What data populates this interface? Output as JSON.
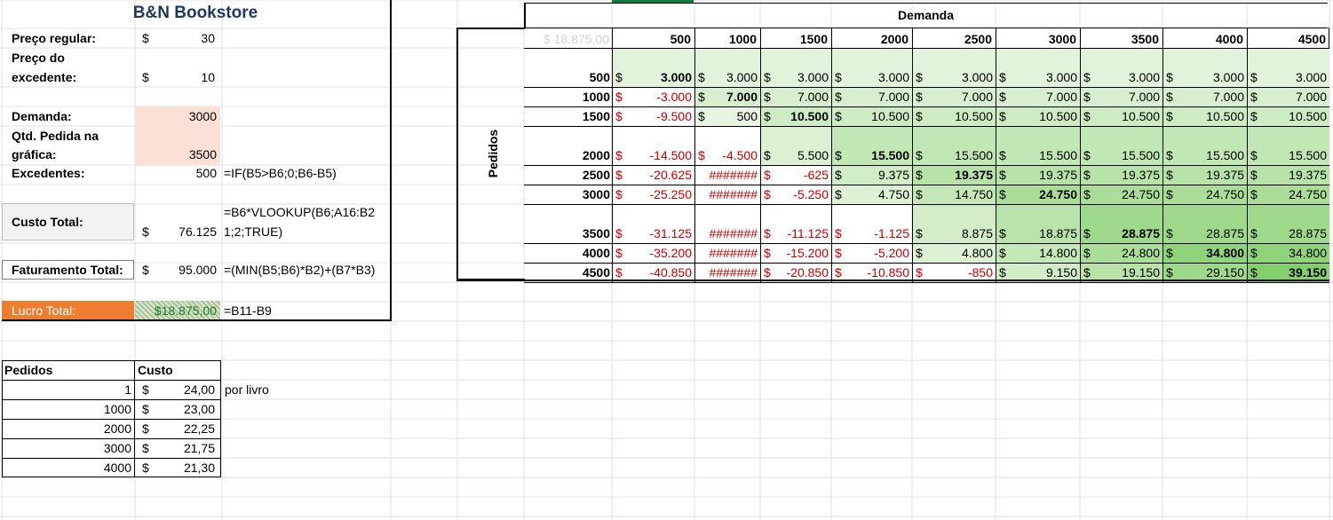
{
  "left_panel": {
    "title": "B&N Bookstore",
    "rows": [
      {
        "label": "Preço regular:",
        "currency": "$",
        "value": "30",
        "formula": ""
      },
      {
        "label_line1": "Preço do",
        "label_line2": "excedente:",
        "currency": "$",
        "value": "10",
        "formula": ""
      },
      {
        "label": "Demanda:",
        "currency": "",
        "value": "3000",
        "formula": ""
      },
      {
        "label_line1": "Qtd. Pedida na",
        "label_line2": "gráfica:",
        "currency": "",
        "value": "3500",
        "formula": ""
      },
      {
        "label": "Excedentes:",
        "currency": "",
        "value": "500",
        "formula": "=IF(B5>B6;0;B6-B5)"
      },
      {
        "label": "Custo Total:",
        "currency": "$",
        "value": "76.125",
        "formula_line1": "=B6*VLOOKUP(B6;A16:B2",
        "formula_line2": "1;2;TRUE)"
      },
      {
        "label": "Faturamento Total:",
        "currency": "$",
        "value": "95.000",
        "formula": "=(MIN(B5;B6)*B2)+(B7*B3)"
      },
      {
        "label": "Lucro Total:",
        "value": "$18.875,00",
        "formula": "=B11-B9"
      }
    ]
  },
  "cost_table": {
    "headers": [
      "Pedidos",
      "Custo"
    ],
    "rows": [
      {
        "pedidos": "1",
        "currency": "$",
        "custo": "24,00"
      },
      {
        "pedidos": "1000",
        "currency": "$",
        "custo": "23,00"
      },
      {
        "pedidos": "2000",
        "currency": "$",
        "custo": "22,25"
      },
      {
        "pedidos": "3000",
        "currency": "$",
        "custo": "21,75"
      },
      {
        "pedidos": "4000",
        "currency": "$",
        "custo": "21,30"
      }
    ],
    "note": "por livro"
  },
  "matrix": {
    "row_axis_label": "Pedidos",
    "col_axis_label": "Demanda",
    "corner_value": "$ 18.875,00",
    "demand_values": [
      "500",
      "1000",
      "1500",
      "2000",
      "2500",
      "3000",
      "3500",
      "4000",
      "4500"
    ],
    "order_values": [
      "500",
      "1000",
      "1500",
      "2000",
      "2500",
      "3000",
      "3500",
      "4000",
      "4500"
    ],
    "cells": [
      [
        "3.000",
        "3.000",
        "3.000",
        "3.000",
        "3.000",
        "3.000",
        "3.000",
        "3.000",
        "3.000"
      ],
      [
        "-3.000",
        "7.000",
        "7.000",
        "7.000",
        "7.000",
        "7.000",
        "7.000",
        "7.000",
        "7.000"
      ],
      [
        "-9.500",
        "500",
        "10.500",
        "10.500",
        "10.500",
        "10.500",
        "10.500",
        "10.500",
        "10.500"
      ],
      [
        "-14.500",
        "-4.500",
        "5.500",
        "15.500",
        "15.500",
        "15.500",
        "15.500",
        "15.500",
        "15.500"
      ],
      [
        "-20.625",
        "#######",
        "-625",
        "9.375",
        "19.375",
        "19.375",
        "19.375",
        "19.375",
        "19.375"
      ],
      [
        "-25.250",
        "#######",
        "-5.250",
        "4.750",
        "14.750",
        "24.750",
        "24.750",
        "24.750",
        "24.750"
      ],
      [
        "-31.125",
        "#######",
        "-11.125",
        "-1.125",
        "8.875",
        "18.875",
        "28.875",
        "28.875",
        "28.875"
      ],
      [
        "-35.200",
        "#######",
        "-15.200",
        "-5.200",
        "4.800",
        "14.800",
        "24.800",
        "34.800",
        "34.800"
      ],
      [
        "-40.850",
        "#######",
        "-20.850",
        "-10.850",
        "-850",
        "9.150",
        "19.150",
        "29.150",
        "39.150"
      ]
    ],
    "currency_symbol": "$",
    "overflow_text": "#######"
  },
  "colors": {
    "demand_input_fill": "#fbe0d6",
    "lucro_fill": "#ed7d31",
    "custo_label_fill": "#f2f2f2",
    "negative_text": "#c00000",
    "green_light": "#e9f6e3",
    "green_dark": "#84cf6d",
    "active_col_indicator": "#107c41"
  }
}
